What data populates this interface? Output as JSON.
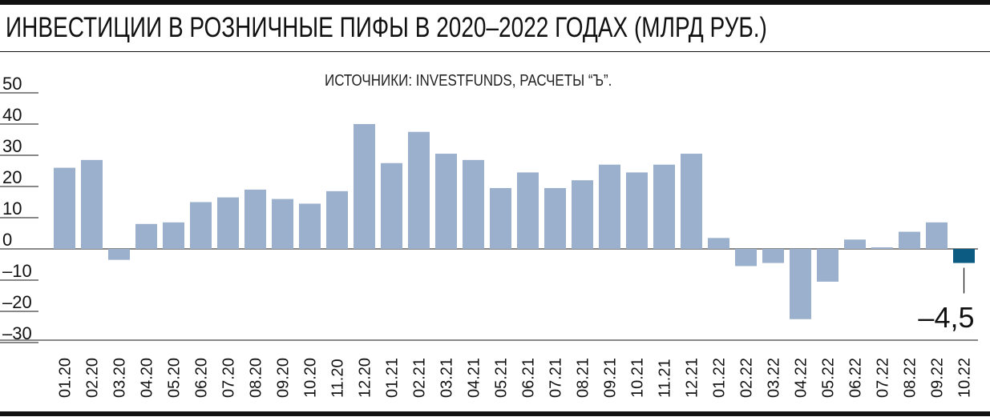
{
  "title": "ИНВЕСТИЦИИ В РОЗНИЧНЫЕ ПИФЫ В 2020–2022 ГОДАХ (МЛРД РУБ.)",
  "source": "ИСТОЧНИКИ: INVESTFUNDS, РАСЧЕТЫ “Ъ”.",
  "colors": {
    "bar": "#9ab0cc",
    "highlight": "#0b5b83",
    "axis": "#111111"
  },
  "chart_data": {
    "type": "bar",
    "title": "ИНВЕСТИЦИИ В РОЗНИЧНЫЕ ПИФЫ В 2020–2022 ГОДАХ (МЛРД РУБ.)",
    "xlabel": "",
    "ylabel": "",
    "ylim": [
      -30,
      50
    ],
    "yticks": [
      50,
      40,
      30,
      20,
      10,
      0,
      -10,
      -20,
      -30
    ],
    "ytick_labels": [
      "50",
      "40",
      "30",
      "20",
      "10",
      "0",
      "–10",
      "–20",
      "–30"
    ],
    "grid": false,
    "categories": [
      "01.20",
      "02.20",
      "03.20",
      "04.20",
      "05.20",
      "06.20",
      "07.20",
      "08.20",
      "09.20",
      "10.20",
      "11.20",
      "12.20",
      "01.21",
      "02.21",
      "03.21",
      "04.21",
      "05.21",
      "06.21",
      "07.21",
      "08.21",
      "09.21",
      "10.21",
      "11.21",
      "12.21",
      "01.22",
      "02.22",
      "03.22",
      "04.22",
      "05.22",
      "06.22",
      "07.22",
      "08.22",
      "09.22",
      "10.22"
    ],
    "values": [
      26,
      28.5,
      -3.5,
      8,
      8.5,
      15,
      16.5,
      19,
      16,
      14.5,
      18.5,
      40,
      27.5,
      37.5,
      30.5,
      28.5,
      19.5,
      24.5,
      19.5,
      22,
      27,
      24.5,
      27,
      30.5,
      3.5,
      -5.5,
      -4.5,
      -22.5,
      -10.5,
      3,
      0.5,
      5.5,
      8.5,
      -4.5
    ],
    "highlight_index": 33,
    "annotation": "–4,5"
  }
}
